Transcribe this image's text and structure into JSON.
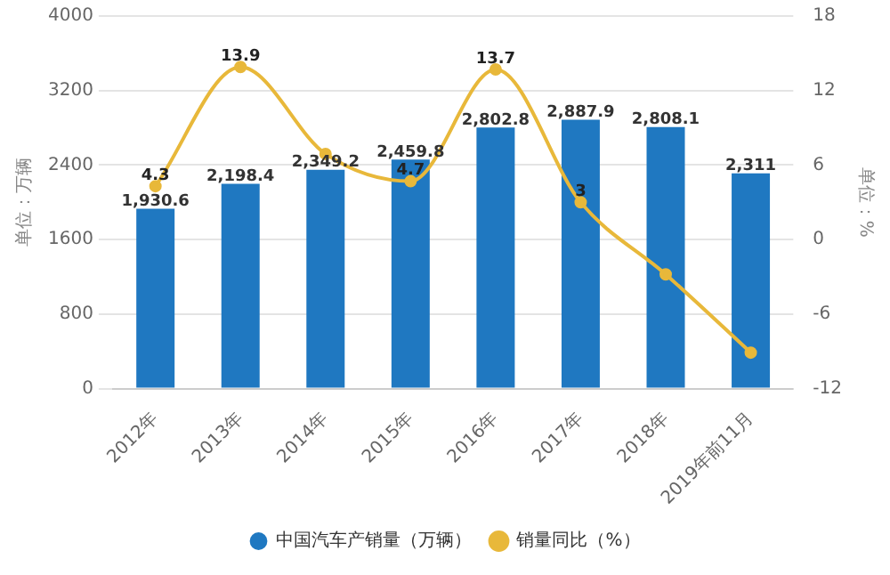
{
  "chart_data": {
    "type": "bar",
    "categories": [
      "2012年",
      "2013年",
      "2014年",
      "2015年",
      "2016年",
      "2017年",
      "2018年",
      "2019年前11月"
    ],
    "ylabel": "单位：万辆",
    "y2label": "单位：%",
    "series": [
      {
        "name": "中国汽车产销量（万辆）",
        "color": "#1f78c1",
        "values": [
          1930.6,
          2198.4,
          2349.2,
          2459.8,
          2802.8,
          2887.9,
          2808.1,
          2311
        ],
        "value_labels": [
          "1,930.6",
          "2,198.4",
          "2,349.2",
          "2,459.8",
          "2,802.8",
          "2,887.9",
          "2,808.1",
          "2,311"
        ]
      },
      {
        "name": "销量同比（%）",
        "type": "line",
        "axis": "y2",
        "color": "#e8b83a",
        "values": [
          4.3,
          13.9,
          6.9,
          4.7,
          13.7,
          3,
          -2.8,
          -9.1
        ],
        "value_labels": [
          "4.3",
          "13.9",
          null,
          "4.7",
          "13.7",
          "3",
          null,
          null
        ]
      }
    ],
    "ylim": [
      0,
      4000
    ],
    "yticks": [
      0,
      800,
      1600,
      2400,
      3200,
      4000
    ],
    "y2lim": [
      -12,
      18
    ],
    "y2ticks": [
      -12,
      -6,
      0,
      6,
      12,
      18
    ],
    "grid": "y",
    "legend": "bottom",
    "marker": "circle"
  }
}
